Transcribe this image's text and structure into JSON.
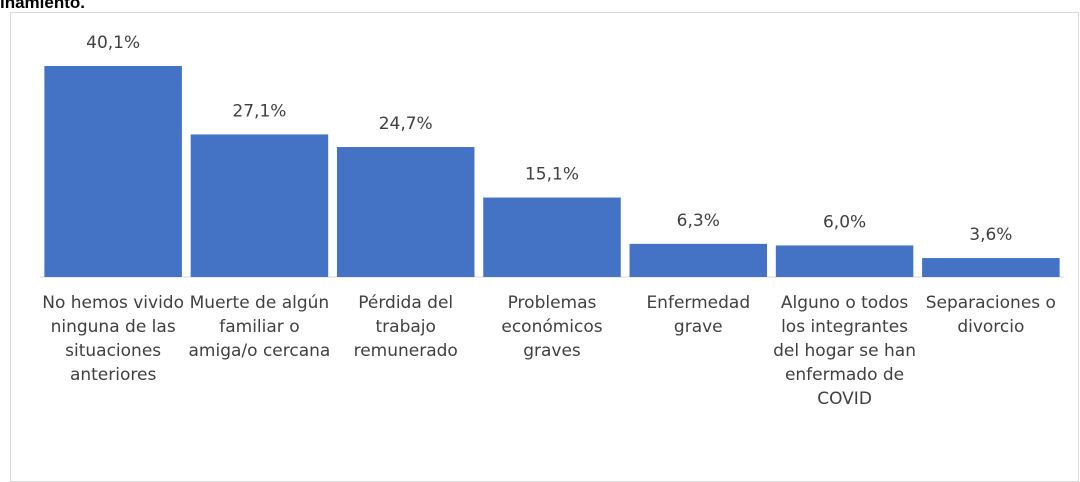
{
  "chart_data": {
    "type": "bar",
    "title": "inamiento.",
    "categories": [
      "No hemos vivido ninguna de las situaciones anteriores",
      "Muerte de algún familiar o amiga/o cercana",
      "Pérdida del trabajo remunerado",
      "Problemas económicos graves",
      "Enfermedad grave",
      "Alguno o todos los integrantes del hogar se han enfermado de COVID",
      "Separaciones o divorcio"
    ],
    "values": [
      40.1,
      27.1,
      24.7,
      15.1,
      6.3,
      6.0,
      3.6
    ],
    "value_labels": [
      "40,1%",
      "27,1%",
      "24,7%",
      "15,1%",
      "6,3%",
      "6,0%",
      "3,6%"
    ],
    "color": "#4472c4"
  }
}
